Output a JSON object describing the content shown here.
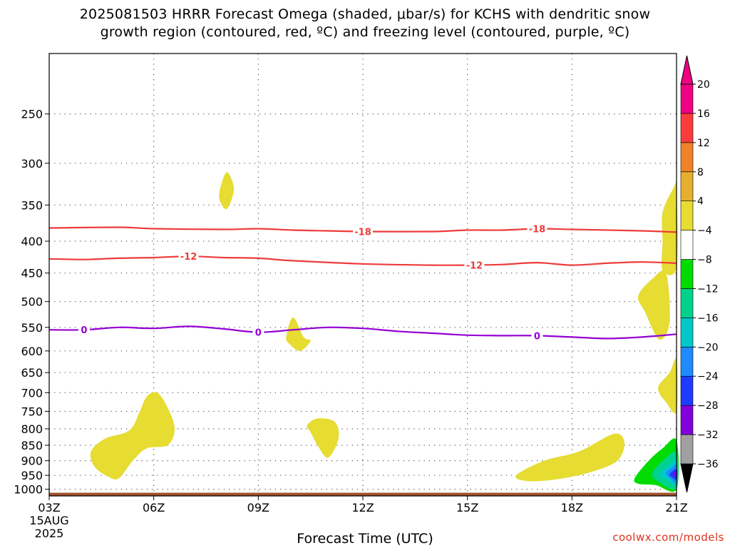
{
  "title_line1": "2025081503 HRRR Forecast Omega (shaded, μbar/s) for KCHS with dendritic snow",
  "title_line2": "growth region (contoured, red, ºC) and freezing level (contoured, purple, ºC)",
  "credit": "coolwx.com/models",
  "chart_data": {
    "type": "heatmap",
    "xlabel": "Forecast Time (UTC)",
    "ylabel": "",
    "x_ticks": [
      "03Z",
      "06Z",
      "09Z",
      "12Z",
      "15Z",
      "18Z",
      "21Z"
    ],
    "x_hours": [
      3,
      6,
      9,
      12,
      15,
      18,
      21
    ],
    "x_first_date": "15AUG",
    "x_first_year": "2025",
    "xlim": [
      3,
      21
    ],
    "y_ticks": [
      250,
      300,
      350,
      400,
      450,
      500,
      550,
      600,
      650,
      700,
      750,
      800,
      850,
      900,
      950,
      1000
    ],
    "ylim": [
      200,
      1025
    ],
    "y_scale": "log-pressure",
    "grid": true,
    "surface_pressure": 1013,
    "colorbar": {
      "levels": [
        -36,
        -32,
        -28,
        -24,
        -20,
        -16,
        -12,
        -8,
        -4,
        4,
        8,
        12,
        16,
        20
      ],
      "colors": [
        "#000000",
        "#a0a0a0",
        "#8200dc",
        "#1e3cff",
        "#1e8cff",
        "#00c8c8",
        "#00d28c",
        "#00dc00",
        "#ffffff",
        "#e6dc32",
        "#e6af2d",
        "#f08228",
        "#fa3c3c",
        "#f00082"
      ]
    },
    "contours_dgz": [
      {
        "label": "-18",
        "points": [
          [
            3,
            381
          ],
          [
            5,
            380
          ],
          [
            6,
            382
          ],
          [
            8,
            383
          ],
          [
            9,
            382
          ],
          [
            10,
            384
          ],
          [
            11,
            385
          ],
          [
            12,
            386
          ],
          [
            14,
            386
          ],
          [
            15,
            384
          ],
          [
            16,
            384
          ],
          [
            17,
            382
          ],
          [
            18,
            383
          ],
          [
            20,
            385
          ],
          [
            21,
            387
          ]
        ]
      },
      {
        "label": "-12",
        "points": [
          [
            3,
            427
          ],
          [
            4,
            428
          ],
          [
            5,
            426
          ],
          [
            6,
            425
          ],
          [
            7,
            423
          ],
          [
            8,
            425
          ],
          [
            9,
            426
          ],
          [
            10,
            430
          ],
          [
            12,
            435
          ],
          [
            14,
            437
          ],
          [
            15,
            437
          ],
          [
            16,
            436
          ],
          [
            17,
            433
          ],
          [
            18,
            437
          ],
          [
            19,
            434
          ],
          [
            20,
            432
          ],
          [
            21,
            434
          ]
        ]
      }
    ],
    "contours_freezing": [
      {
        "label": "0",
        "points": [
          [
            3,
            555
          ],
          [
            4,
            555
          ],
          [
            5,
            550
          ],
          [
            6,
            552
          ],
          [
            7,
            548
          ],
          [
            8,
            553
          ],
          [
            9,
            560
          ],
          [
            10,
            555
          ],
          [
            11,
            550
          ],
          [
            12,
            552
          ],
          [
            13,
            558
          ],
          [
            14,
            562
          ],
          [
            15,
            566
          ],
          [
            16,
            567
          ],
          [
            17,
            567
          ],
          [
            18,
            570
          ],
          [
            19,
            573
          ],
          [
            20,
            570
          ],
          [
            21,
            564
          ]
        ]
      }
    ],
    "contour_label_hours": {
      "dgz_-18": [
        12,
        17
      ],
      "dgz_-12": [
        7,
        15.2
      ],
      "freezing_0": [
        4,
        9,
        17
      ]
    },
    "omega_regions": [
      {
        "value": 4,
        "points": [
          [
            4.2,
            870
          ],
          [
            4.6,
            830
          ],
          [
            5.3,
            805
          ],
          [
            5.6,
            750
          ],
          [
            5.8,
            710
          ],
          [
            6.1,
            700
          ],
          [
            6.4,
            740
          ],
          [
            6.6,
            800
          ],
          [
            6.4,
            850
          ],
          [
            5.8,
            860
          ],
          [
            5.4,
            900
          ],
          [
            5.0,
            960
          ],
          [
            4.7,
            955
          ],
          [
            4.3,
            920
          ]
        ]
      },
      {
        "value": 4,
        "points": [
          [
            7.9,
            330
          ],
          [
            8.1,
            310
          ],
          [
            8.3,
            330
          ],
          [
            8.1,
            355
          ],
          [
            7.9,
            345
          ]
        ]
      },
      {
        "value": 4,
        "points": [
          [
            9.8,
            570
          ],
          [
            10.0,
            530
          ],
          [
            10.3,
            570
          ],
          [
            10.5,
            578
          ],
          [
            10.2,
            600
          ],
          [
            9.9,
            585
          ]
        ]
      },
      {
        "value": 4,
        "points": [
          [
            10.4,
            790
          ],
          [
            10.7,
            770
          ],
          [
            11.2,
            780
          ],
          [
            11.3,
            830
          ],
          [
            11.0,
            890
          ],
          [
            10.7,
            850
          ],
          [
            10.5,
            810
          ]
        ]
      },
      {
        "value": 4,
        "points": [
          [
            16.4,
            950
          ],
          [
            17.2,
            900
          ],
          [
            18.2,
            870
          ],
          [
            19.2,
            815
          ],
          [
            19.5,
            840
          ],
          [
            19.3,
            900
          ],
          [
            18.5,
            940
          ],
          [
            17.5,
            965
          ],
          [
            16.7,
            970
          ]
        ]
      },
      {
        "value": 4,
        "points": [
          [
            19.9,
            490
          ],
          [
            20.3,
            460
          ],
          [
            20.7,
            450
          ],
          [
            20.8,
            540
          ],
          [
            20.5,
            575
          ],
          [
            20.1,
            520
          ]
        ]
      },
      {
        "value": 4,
        "points": [
          [
            20.5,
            680
          ],
          [
            20.8,
            650
          ],
          [
            21.0,
            620
          ],
          [
            21.0,
            750
          ],
          [
            20.7,
            725
          ],
          [
            20.5,
            700
          ]
        ]
      },
      {
        "value": 4,
        "points": [
          [
            20.6,
            360
          ],
          [
            20.9,
            330
          ],
          [
            21.0,
            330
          ],
          [
            21.0,
            440
          ],
          [
            20.6,
            445
          ],
          [
            20.6,
            400
          ]
        ]
      },
      {
        "value": 4,
        "points": [
          [
            20.95,
            680
          ],
          [
            21.0,
            680
          ],
          [
            21.0,
            720
          ],
          [
            20.95,
            720
          ]
        ]
      },
      {
        "value": -8,
        "points": [
          [
            19.8,
            960
          ],
          [
            20.2,
            900
          ],
          [
            20.6,
            860
          ],
          [
            21,
            835
          ],
          [
            21,
            1000
          ],
          [
            20.4,
            985
          ],
          [
            19.9,
            980
          ]
        ]
      },
      {
        "value": -12,
        "points": [
          [
            20.3,
            945
          ],
          [
            20.6,
            900
          ],
          [
            21,
            875
          ],
          [
            21,
            995
          ],
          [
            20.5,
            975
          ]
        ]
      },
      {
        "value": -16,
        "points": [
          [
            20.5,
            945
          ],
          [
            20.8,
            912
          ],
          [
            21,
            900
          ],
          [
            21,
            985
          ],
          [
            20.7,
            965
          ]
        ]
      },
      {
        "value": -20,
        "points": [
          [
            20.7,
            940
          ],
          [
            20.85,
            925
          ],
          [
            21,
            915
          ],
          [
            21,
            975
          ],
          [
            20.8,
            958
          ]
        ]
      },
      {
        "value": -24,
        "points": [
          [
            20.8,
            945
          ],
          [
            21,
            928
          ],
          [
            21,
            965
          ],
          [
            20.85,
            955
          ]
        ]
      },
      {
        "value": -28,
        "points": [
          [
            20.9,
            945
          ],
          [
            21,
            935
          ],
          [
            21,
            958
          ]
        ]
      }
    ]
  }
}
